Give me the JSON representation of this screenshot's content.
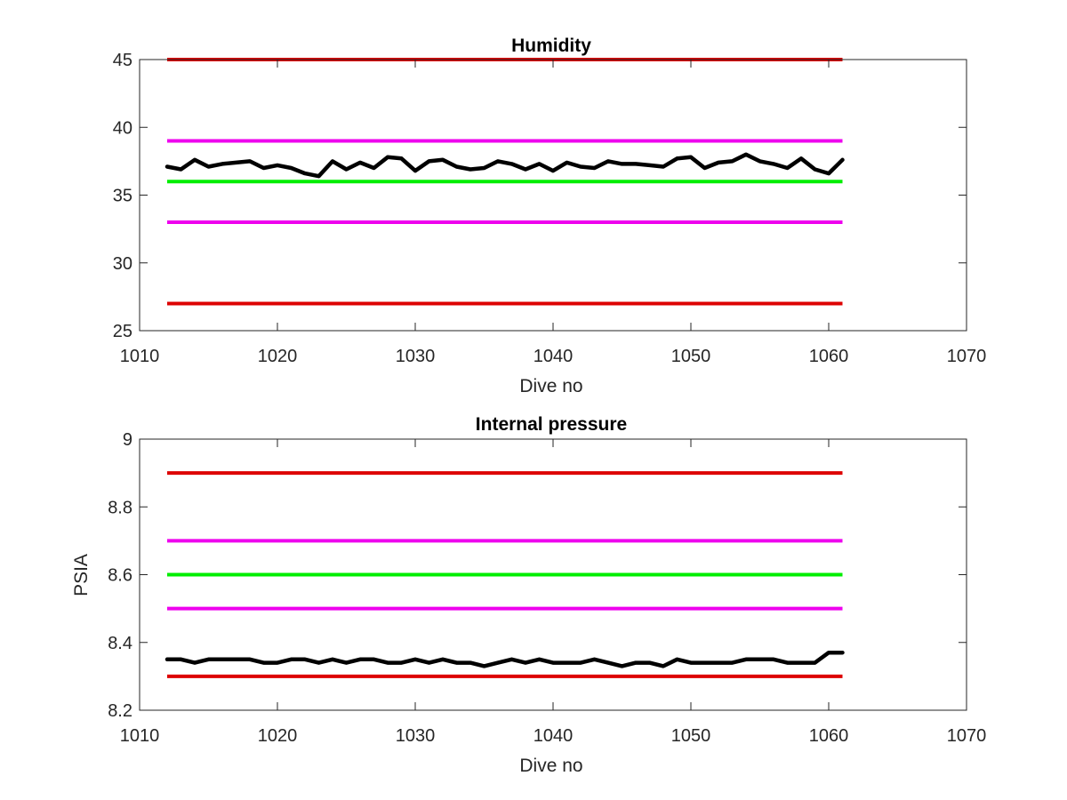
{
  "chart_data": [
    {
      "type": "line",
      "title": "Humidity",
      "xlabel": "Dive no",
      "ylabel": "",
      "xlim": [
        1010,
        1070
      ],
      "ylim": [
        25,
        45
      ],
      "xticks": [
        1010,
        1020,
        1030,
        1040,
        1050,
        1060,
        1070
      ],
      "yticks": [
        25,
        30,
        35,
        40,
        45
      ],
      "grid": false,
      "reference_lines": [
        {
          "y": 45,
          "color": "#dd0000",
          "x": [
            1012,
            1061
          ]
        },
        {
          "y": 39,
          "color": "#ee00ee",
          "x": [
            1012,
            1061
          ]
        },
        {
          "y": 36,
          "color": "#00ee00",
          "x": [
            1012,
            1061
          ]
        },
        {
          "y": 33,
          "color": "#ee00ee",
          "x": [
            1012,
            1061
          ]
        },
        {
          "y": 27,
          "color": "#dd0000",
          "x": [
            1012,
            1061
          ]
        }
      ],
      "series": [
        {
          "color": "#000000",
          "x": [
            1012,
            1013,
            1014,
            1015,
            1016,
            1017,
            1018,
            1019,
            1020,
            1021,
            1022,
            1023,
            1024,
            1025,
            1026,
            1027,
            1028,
            1029,
            1030,
            1031,
            1032,
            1033,
            1034,
            1035,
            1036,
            1037,
            1038,
            1039,
            1040,
            1041,
            1042,
            1043,
            1044,
            1045,
            1046,
            1047,
            1048,
            1049,
            1050,
            1051,
            1052,
            1053,
            1054,
            1055,
            1056,
            1057,
            1058,
            1059,
            1060,
            1061
          ],
          "values": [
            37.1,
            36.9,
            37.6,
            37.1,
            37.3,
            37.4,
            37.5,
            37.0,
            37.2,
            37.0,
            36.6,
            36.4,
            37.5,
            36.9,
            37.4,
            37.0,
            37.8,
            37.7,
            36.8,
            37.5,
            37.6,
            37.1,
            36.9,
            37.0,
            37.5,
            37.3,
            36.9,
            37.3,
            36.8,
            37.4,
            37.1,
            37.0,
            37.5,
            37.3,
            37.3,
            37.2,
            37.1,
            37.7,
            37.8,
            37.0,
            37.4,
            37.5,
            38.0,
            37.5,
            37.3,
            37.0,
            37.7,
            36.9,
            36.6,
            37.6
          ]
        }
      ]
    },
    {
      "type": "line",
      "title": "Internal pressure",
      "xlabel": "Dive no",
      "ylabel": "PSIA",
      "xlim": [
        1010,
        1070
      ],
      "ylim": [
        8.2,
        9
      ],
      "xticks": [
        1010,
        1020,
        1030,
        1040,
        1050,
        1060,
        1070
      ],
      "yticks": [
        8.2,
        8.4,
        8.6,
        8.8,
        9
      ],
      "grid": false,
      "reference_lines": [
        {
          "y": 8.9,
          "color": "#dd0000",
          "x": [
            1012,
            1061
          ]
        },
        {
          "y": 8.7,
          "color": "#ee00ee",
          "x": [
            1012,
            1061
          ]
        },
        {
          "y": 8.6,
          "color": "#00ee00",
          "x": [
            1012,
            1061
          ]
        },
        {
          "y": 8.5,
          "color": "#ee00ee",
          "x": [
            1012,
            1061
          ]
        },
        {
          "y": 8.3,
          "color": "#dd0000",
          "x": [
            1012,
            1061
          ]
        }
      ],
      "series": [
        {
          "color": "#000000",
          "x": [
            1012,
            1013,
            1014,
            1015,
            1016,
            1017,
            1018,
            1019,
            1020,
            1021,
            1022,
            1023,
            1024,
            1025,
            1026,
            1027,
            1028,
            1029,
            1030,
            1031,
            1032,
            1033,
            1034,
            1035,
            1036,
            1037,
            1038,
            1039,
            1040,
            1041,
            1042,
            1043,
            1044,
            1045,
            1046,
            1047,
            1048,
            1049,
            1050,
            1051,
            1052,
            1053,
            1054,
            1055,
            1056,
            1057,
            1058,
            1059,
            1060,
            1061
          ],
          "values": [
            8.35,
            8.35,
            8.34,
            8.35,
            8.35,
            8.35,
            8.35,
            8.34,
            8.34,
            8.35,
            8.35,
            8.34,
            8.35,
            8.34,
            8.35,
            8.35,
            8.34,
            8.34,
            8.35,
            8.34,
            8.35,
            8.34,
            8.34,
            8.33,
            8.34,
            8.35,
            8.34,
            8.35,
            8.34,
            8.34,
            8.34,
            8.35,
            8.34,
            8.33,
            8.34,
            8.34,
            8.33,
            8.35,
            8.34,
            8.34,
            8.34,
            8.34,
            8.35,
            8.35,
            8.35,
            8.34,
            8.34,
            8.34,
            8.37,
            8.37
          ]
        }
      ]
    }
  ]
}
